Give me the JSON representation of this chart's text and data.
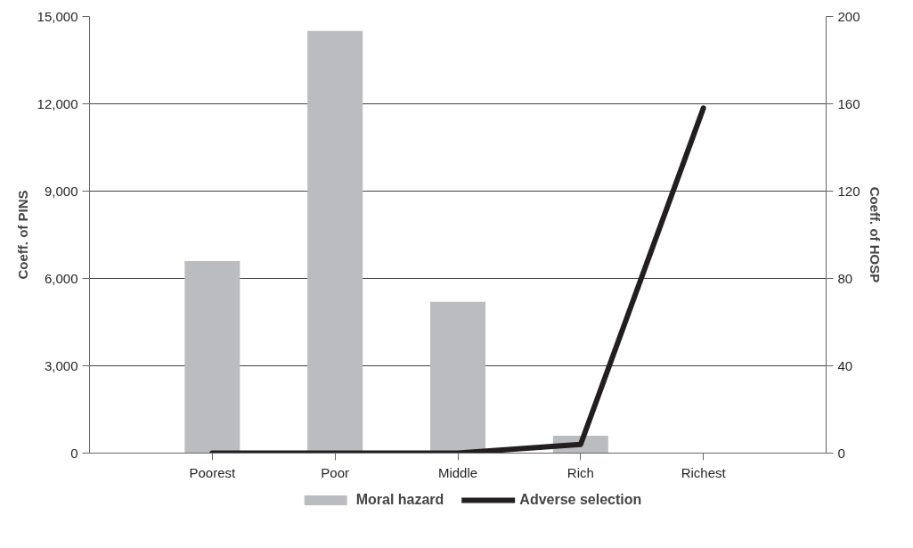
{
  "chart_data": {
    "type": "bar",
    "categories": [
      "Poorest",
      "Poor",
      "Middle",
      "Rich",
      "Richest"
    ],
    "ylabel": "Coeff. of PINS",
    "y2label": "Coeff. of HOSP",
    "series": [
      {
        "name": "Moral hazard",
        "type": "bar",
        "color": "#bbbcc0",
        "values": [
          6600,
          14500,
          5200,
          600,
          0
        ]
      },
      {
        "name": "Adverse selection",
        "type": "line",
        "axis": "y2",
        "color": "#231f20",
        "values": [
          0,
          0,
          0,
          4,
          158
        ]
      }
    ],
    "ylim": [
      0,
      15000
    ],
    "yticks": [
      {
        "value": 0,
        "label": "0"
      },
      {
        "value": 3000,
        "label": "3,000"
      },
      {
        "value": 6000,
        "label": "6,000"
      },
      {
        "value": 9000,
        "label": "9,000"
      },
      {
        "value": 12000,
        "label": "12,000"
      },
      {
        "value": 15000,
        "label": "15,000"
      }
    ],
    "y2lim": [
      0,
      200
    ],
    "y2ticks": [
      0,
      40,
      80,
      120,
      160,
      200
    ],
    "grid": "y",
    "legend": "bottom",
    "marker": "none",
    "line_style": "solid"
  }
}
